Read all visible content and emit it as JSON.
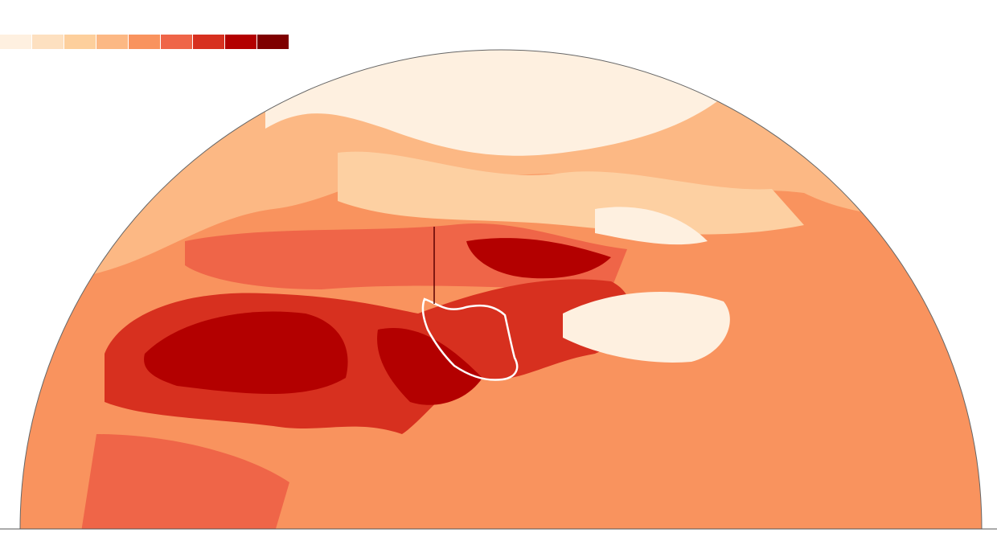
{
  "legend": {
    "colors": [
      "#fef0e0",
      "#fde0c0",
      "#fdcf9c",
      "#fcb884",
      "#f9935e",
      "#ef6548",
      "#d7301f",
      "#b30000",
      "#7f0000"
    ]
  }
}
